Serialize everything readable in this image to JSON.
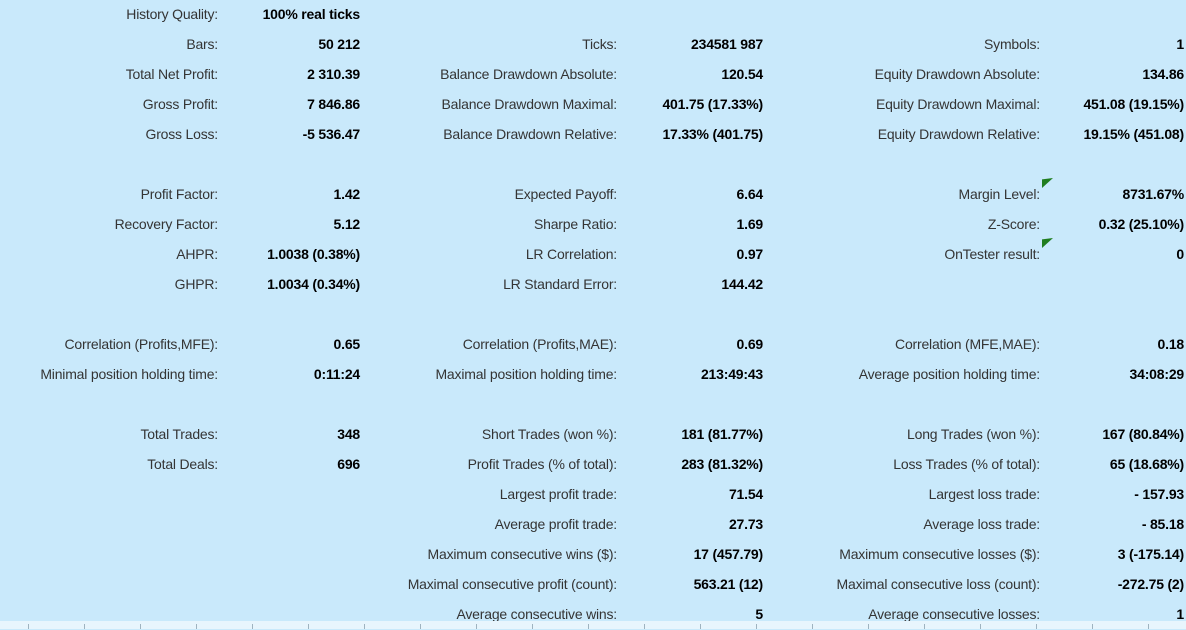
{
  "colors": {
    "background": "#C9E9FB",
    "label_text": "#343434",
    "value_text": "#000000",
    "marker_green": "#1F7D1F",
    "strip_background": "#E8F5FD",
    "strip_tick": "#9FB3C0"
  },
  "report": {
    "rows": [
      [
        "History Quality:",
        "100% real ticks",
        "",
        "",
        "",
        ""
      ],
      [
        "Bars:",
        "50 212",
        "Ticks:",
        "234581 987",
        "Symbols:",
        "1"
      ],
      [
        "Total Net Profit:",
        "2 310.39",
        "Balance Drawdown Absolute:",
        "120.54",
        "Equity Drawdown Absolute:",
        "134.86"
      ],
      [
        "Gross Profit:",
        "7 846.86",
        "Balance Drawdown Maximal:",
        "401.75 (17.33%)",
        "Equity Drawdown Maximal:",
        "451.08 (19.15%)"
      ],
      [
        "Gross Loss:",
        "-5 536.47",
        "Balance Drawdown Relative:",
        "17.33% (401.75)",
        "Equity Drawdown Relative:",
        "19.15% (451.08)"
      ],
      [
        "",
        "",
        "",
        "",
        "",
        ""
      ],
      [
        "Profit Factor:",
        "1.42",
        "Expected Payoff:",
        "6.64",
        "Margin Level:",
        "8731.67%"
      ],
      [
        "Recovery Factor:",
        "5.12",
        "Sharpe Ratio:",
        "1.69",
        "Z-Score:",
        "0.32 (25.10%)"
      ],
      [
        "AHPR:",
        "1.0038 (0.38%)",
        "LR Correlation:",
        "0.97",
        "OnTester result:",
        "0"
      ],
      [
        "GHPR:",
        "1.0034 (0.34%)",
        "LR Standard Error:",
        "144.42",
        "",
        ""
      ],
      [
        "",
        "",
        "",
        "",
        "",
        ""
      ],
      [
        "Correlation (Profits,MFE):",
        "0.65",
        "Correlation (Profits,MAE):",
        "0.69",
        "Correlation (MFE,MAE):",
        "0.18"
      ],
      [
        "Minimal position holding time:",
        "0:11:24",
        "Maximal position holding time:",
        "213:49:43",
        "Average position holding time:",
        "34:08:29"
      ],
      [
        "",
        "",
        "",
        "",
        "",
        ""
      ],
      [
        "Total Trades:",
        "348",
        "Short Trades (won %):",
        "181 (81.77%)",
        "Long Trades (won %):",
        "167 (80.84%)"
      ],
      [
        "Total Deals:",
        "696",
        "Profit Trades (% of total):",
        "283 (81.32%)",
        "Loss Trades (% of total):",
        "65 (18.68%)"
      ],
      [
        "",
        "",
        "Largest profit trade:",
        "71.54",
        "Largest loss trade:",
        "- 157.93"
      ],
      [
        "",
        "",
        "Average profit trade:",
        "27.73",
        "Average loss trade:",
        "- 85.18"
      ],
      [
        "",
        "",
        "Maximum consecutive wins ($):",
        "17 (457.79)",
        "Maximum consecutive losses ($):",
        "3 (-175.14)"
      ],
      [
        "",
        "",
        "Maximal consecutive profit (count):",
        "563.21 (12)",
        "Maximal consecutive loss (count):",
        "-272.75 (2)"
      ],
      [
        "",
        "",
        "Average consecutive wins:",
        "5",
        "Average consecutive losses:",
        "1"
      ]
    ],
    "green_marker_cells": [
      [
        6,
        5
      ],
      [
        8,
        5
      ]
    ]
  }
}
